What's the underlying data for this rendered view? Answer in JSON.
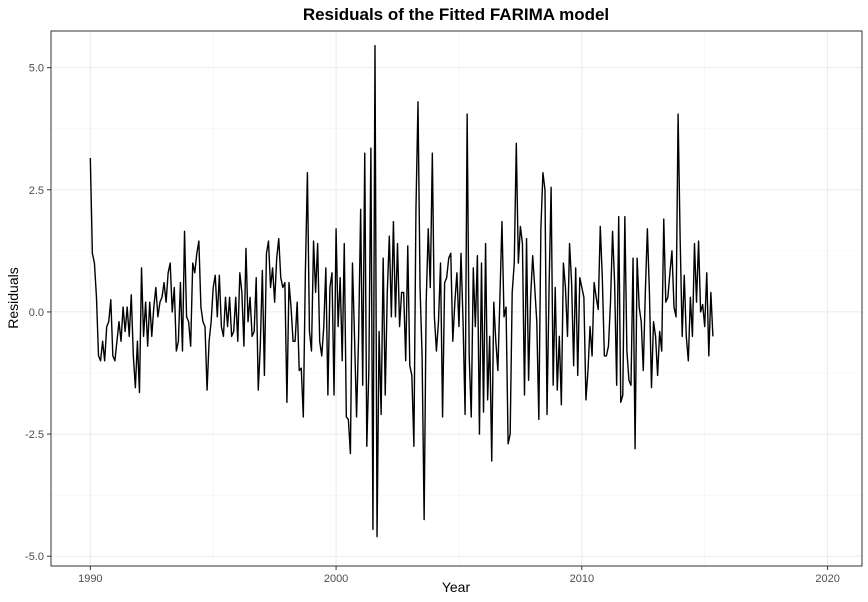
{
  "chart_data": {
    "type": "line",
    "title": "Residuals of the Fitted FARIMA model",
    "xlabel": "Year",
    "ylabel": "Residuals",
    "xlim": [
      1988.4,
      2021.4
    ],
    "ylim": [
      -5.2,
      5.75
    ],
    "x_ticks": [
      1990,
      2000,
      2010,
      2020
    ],
    "x_tick_labels": [
      "1990",
      "2000",
      "2010",
      "2020"
    ],
    "y_ticks": [
      -5.0,
      -2.5,
      0.0,
      2.5,
      5.0
    ],
    "y_tick_labels": [
      "-5.0",
      "-2.5",
      "0.0",
      "2.5",
      "5.0"
    ],
    "grid": true,
    "x_start": 1990.0,
    "x_step": 0.0833333,
    "series": [
      {
        "values": [
          3.15,
          1.2,
          1.0,
          0.3,
          -0.9,
          -1.0,
          -0.6,
          -1.0,
          -0.3,
          -0.2,
          0.25,
          -0.9,
          -1.0,
          -0.6,
          -0.2,
          -0.6,
          0.1,
          -0.4,
          0.1,
          -0.5,
          0.35,
          -0.9,
          -1.55,
          -0.6,
          -1.65,
          0.9,
          -0.5,
          0.2,
          -0.7,
          0.2,
          -0.5,
          0.1,
          0.5,
          -0.1,
          0.2,
          0.3,
          0.6,
          0.2,
          0.8,
          1.0,
          0.0,
          0.5,
          -0.8,
          -0.6,
          0.6,
          -0.8,
          1.65,
          -0.1,
          -0.2,
          -0.7,
          1.0,
          0.8,
          1.2,
          1.45,
          0.1,
          -0.2,
          -0.3,
          -1.6,
          -0.6,
          -0.2,
          0.5,
          0.75,
          -0.1,
          0.75,
          -0.3,
          -0.5,
          0.3,
          -0.3,
          0.3,
          -0.5,
          -0.4,
          0.3,
          -0.6,
          0.8,
          0.4,
          -0.7,
          1.3,
          -0.2,
          0.3,
          -0.5,
          -0.4,
          0.7,
          -1.6,
          -0.7,
          0.85,
          -1.3,
          1.2,
          1.45,
          0.5,
          0.9,
          0.2,
          1.1,
          1.5,
          0.7,
          0.5,
          0.6,
          -1.85,
          0.6,
          0.1,
          -0.6,
          -0.6,
          0.2,
          -1.2,
          -1.15,
          -2.15,
          0.8,
          2.85,
          -0.4,
          -0.8,
          1.45,
          0.4,
          1.4,
          -0.6,
          -0.9,
          -0.3,
          0.9,
          -1.7,
          0.5,
          0.8,
          -1.7,
          1.7,
          -0.3,
          0.7,
          -1.0,
          1.4,
          -2.15,
          -2.2,
          -2.9,
          1.0,
          -0.5,
          -2.15,
          -0.5,
          2.1,
          -1.5,
          3.25,
          -2.75,
          -1.2,
          3.35,
          -4.45,
          5.45,
          -4.6,
          -0.4,
          -2.1,
          1.1,
          -1.7,
          0.4,
          1.55,
          -0.1,
          1.85,
          -0.1,
          1.4,
          -0.3,
          0.4,
          0.4,
          -1.0,
          1.35,
          -1.1,
          -1.3,
          -2.75,
          2.1,
          4.3,
          0.5,
          -0.9,
          -4.25,
          0.2,
          1.7,
          0.5,
          3.25,
          -0.1,
          -0.8,
          -0.2,
          1.0,
          -2.15,
          0.6,
          0.7,
          1.1,
          1.2,
          -0.6,
          0.2,
          0.8,
          -0.3,
          1.2,
          -0.2,
          -2.1,
          4.05,
          -0.9,
          -2.15,
          0.9,
          -0.3,
          1.15,
          -2.5,
          1.0,
          -2.05,
          1.4,
          -1.8,
          -0.5,
          -3.05,
          0.2,
          -0.6,
          -1.2,
          0.3,
          1.85,
          -0.1,
          0.1,
          -2.7,
          -2.5,
          0.4,
          1.0,
          3.45,
          1.0,
          1.75,
          1.4,
          -1.7,
          1.5,
          -1.4,
          0.3,
          1.15,
          0.5,
          -0.2,
          -2.2,
          1.7,
          2.85,
          2.5,
          -2.1,
          0.5,
          2.55,
          -1.5,
          0.5,
          -1.6,
          -0.5,
          -1.9,
          1.0,
          0.5,
          -0.5,
          1.4,
          0.6,
          -1.1,
          0.9,
          -1.3,
          0.7,
          0.5,
          0.3,
          -1.8,
          -1.2,
          -0.3,
          -0.9,
          0.6,
          0.3,
          0.05,
          1.75,
          0.7,
          -0.9,
          -0.9,
          -0.7,
          0.2,
          1.65,
          0.6,
          -1.5,
          1.95,
          -1.85,
          -1.7,
          1.95,
          -0.8,
          -1.4,
          -1.5,
          1.1,
          -2.8,
          1.1,
          0.1,
          -0.2,
          -1.2,
          0.4,
          1.7,
          0.4,
          -1.55,
          -0.2,
          -0.5,
          -1.3,
          -0.4,
          -0.8,
          1.9,
          0.2,
          0.3,
          0.8,
          1.25,
          0.1,
          -0.1,
          4.05,
          1.5,
          -0.5,
          0.75,
          -0.5,
          -1.0,
          0.3,
          -0.5,
          1.4,
          0.2,
          1.45,
          0.0,
          0.15,
          -0.3,
          0.8,
          -0.9,
          0.4,
          -0.5
        ]
      }
    ]
  }
}
